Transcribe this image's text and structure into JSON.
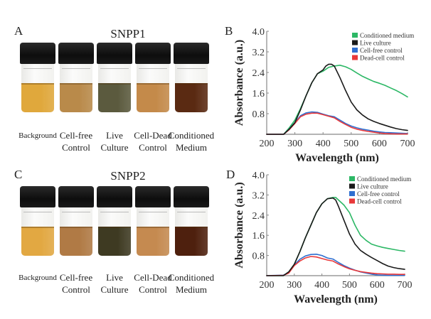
{
  "panels": {
    "A": {
      "letter": "A",
      "title": "SNPP1"
    },
    "B": {
      "letter": "B"
    },
    "C": {
      "letter": "C",
      "title": "SNPP2"
    },
    "D": {
      "letter": "D"
    }
  },
  "vial_labels": [
    {
      "line1": "Background",
      "line2": ""
    },
    {
      "line1": "Cell-free",
      "line2": "Control"
    },
    {
      "line1": "Live",
      "line2": "Culture"
    },
    {
      "line1": "Cell-Dead",
      "line2": "Control"
    },
    {
      "line1": "Conditioned",
      "line2": "Medium"
    }
  ],
  "vial_colors": {
    "SNPP1": [
      "#e0a83c",
      "#b98a4a",
      "#5b5a3e",
      "#c48a4a",
      "#5a2a12"
    ],
    "SNPP2": [
      "#e2a842",
      "#b07a45",
      "#3e3a22",
      "#c58a50",
      "#4e200e"
    ]
  },
  "series_colors": {
    "Conditioned medium": "#2db866",
    "Live culture": "#1a1a1a",
    "Cell-free control": "#2f6fd0",
    "Dead-cell control": "#e8383a"
  },
  "chart_data": [
    {
      "panel": "B",
      "type": "line",
      "title": "",
      "xlabel": "Wavelength (nm)",
      "ylabel": "Absorbance (a.u.)",
      "xlim": [
        200,
        700
      ],
      "ylim": [
        0,
        4.0
      ],
      "xticks": [
        200,
        300,
        400,
        500,
        600,
        700
      ],
      "yticks": [
        0.8,
        1.6,
        2.4,
        3.2,
        4.0
      ],
      "ytick_labels": [
        "0.8",
        "1.6",
        "2.4",
        "3.2",
        "4.0"
      ],
      "grid": false,
      "legend_position": "top-right",
      "series": [
        {
          "name": "Conditioned medium",
          "x": [
            200,
            260,
            280,
            300,
            320,
            340,
            360,
            380,
            400,
            420,
            440,
            460,
            480,
            500,
            520,
            540,
            560,
            580,
            600,
            620,
            640,
            660,
            680,
            700
          ],
          "y": [
            0,
            0,
            0.25,
            0.55,
            1.0,
            1.5,
            2.0,
            2.35,
            2.45,
            2.6,
            2.65,
            2.68,
            2.62,
            2.52,
            2.38,
            2.25,
            2.15,
            2.05,
            1.98,
            1.9,
            1.8,
            1.7,
            1.58,
            1.45
          ]
        },
        {
          "name": "Live culture",
          "x": [
            200,
            260,
            280,
            300,
            320,
            340,
            360,
            380,
            400,
            410,
            420,
            430,
            440,
            460,
            480,
            500,
            520,
            540,
            560,
            580,
            600,
            620,
            640,
            660,
            680,
            700
          ],
          "y": [
            0,
            0,
            0.2,
            0.45,
            0.95,
            1.5,
            2.0,
            2.35,
            2.5,
            2.65,
            2.72,
            2.72,
            2.65,
            2.2,
            1.7,
            1.25,
            0.95,
            0.75,
            0.6,
            0.5,
            0.42,
            0.35,
            0.28,
            0.22,
            0.18,
            0.15
          ]
        },
        {
          "name": "Cell-free control",
          "x": [
            200,
            260,
            280,
            300,
            320,
            340,
            360,
            380,
            400,
            420,
            440,
            460,
            480,
            500,
            520,
            540,
            560,
            580,
            600,
            620,
            640,
            660,
            680,
            700
          ],
          "y": [
            0,
            0,
            0.2,
            0.45,
            0.72,
            0.83,
            0.87,
            0.85,
            0.78,
            0.72,
            0.68,
            0.55,
            0.42,
            0.32,
            0.25,
            0.2,
            0.16,
            0.12,
            0.09,
            0.07,
            0.06,
            0.05,
            0.04,
            0.03
          ]
        },
        {
          "name": "Dead-cell control",
          "x": [
            200,
            260,
            280,
            300,
            320,
            340,
            360,
            380,
            400,
            420,
            440,
            460,
            480,
            500,
            520,
            540,
            560,
            580,
            600,
            620,
            640,
            660,
            680,
            700
          ],
          "y": [
            0,
            0,
            0.18,
            0.42,
            0.68,
            0.78,
            0.82,
            0.82,
            0.76,
            0.7,
            0.64,
            0.5,
            0.38,
            0.27,
            0.2,
            0.15,
            0.11,
            0.08,
            0.05,
            0.03,
            0.02,
            0.01,
            0.01,
            0.01
          ]
        }
      ]
    },
    {
      "panel": "D",
      "type": "line",
      "title": "",
      "xlabel": "Wavelength (nm)",
      "ylabel": "Absorbance (a.u.)",
      "xlim": [
        200,
        700
      ],
      "ylim": [
        0,
        4.0
      ],
      "xticks": [
        200,
        300,
        400,
        500,
        600,
        700
      ],
      "yticks": [
        0.8,
        1.6,
        2.4,
        3.2,
        4.0
      ],
      "ytick_labels": [
        "0.8",
        "1.6",
        "2.4",
        "3.2",
        "4.0"
      ],
      "grid": false,
      "legend_position": "top-right",
      "series": [
        {
          "name": "Conditioned medium",
          "x": [
            200,
            260,
            280,
            300,
            320,
            340,
            360,
            380,
            400,
            420,
            440,
            450,
            460,
            480,
            500,
            520,
            540,
            560,
            580,
            600,
            620,
            640,
            660,
            680,
            700
          ],
          "y": [
            0,
            0,
            0.15,
            0.45,
            0.95,
            1.5,
            2.0,
            2.5,
            2.85,
            3.05,
            3.1,
            3.1,
            3.0,
            2.8,
            2.5,
            2.0,
            1.6,
            1.4,
            1.25,
            1.18,
            1.12,
            1.08,
            1.04,
            1.0,
            0.97
          ]
        },
        {
          "name": "Live culture",
          "x": [
            200,
            260,
            280,
            300,
            320,
            340,
            360,
            380,
            400,
            420,
            440,
            450,
            460,
            480,
            500,
            520,
            540,
            560,
            580,
            600,
            620,
            640,
            660,
            680,
            700
          ],
          "y": [
            0,
            0,
            0.15,
            0.45,
            0.95,
            1.5,
            2.0,
            2.5,
            2.85,
            3.05,
            3.08,
            3.0,
            2.75,
            2.2,
            1.65,
            1.25,
            1.0,
            0.85,
            0.72,
            0.6,
            0.48,
            0.38,
            0.32,
            0.28,
            0.25
          ]
        },
        {
          "name": "Cell-free control",
          "x": [
            200,
            260,
            280,
            300,
            320,
            340,
            360,
            380,
            400,
            420,
            440,
            460,
            480,
            500,
            520,
            540,
            560,
            580,
            600,
            620,
            640,
            660,
            680,
            700
          ],
          "y": [
            0,
            0.02,
            0.12,
            0.42,
            0.65,
            0.78,
            0.84,
            0.85,
            0.8,
            0.7,
            0.66,
            0.52,
            0.4,
            0.3,
            0.22,
            0.15,
            0.1,
            0.06,
            0.03,
            0.02,
            0.01,
            0.01,
            0.01,
            0.01
          ]
        },
        {
          "name": "Dead-cell control",
          "x": [
            200,
            260,
            280,
            300,
            320,
            340,
            360,
            380,
            400,
            420,
            440,
            460,
            480,
            500,
            520,
            540,
            560,
            580,
            600,
            620,
            640,
            660,
            680,
            700
          ],
          "y": [
            0,
            0.01,
            0.1,
            0.4,
            0.58,
            0.7,
            0.76,
            0.74,
            0.68,
            0.62,
            0.58,
            0.46,
            0.36,
            0.27,
            0.21,
            0.16,
            0.13,
            0.1,
            0.08,
            0.07,
            0.06,
            0.06,
            0.05,
            0.05
          ]
        }
      ]
    }
  ]
}
